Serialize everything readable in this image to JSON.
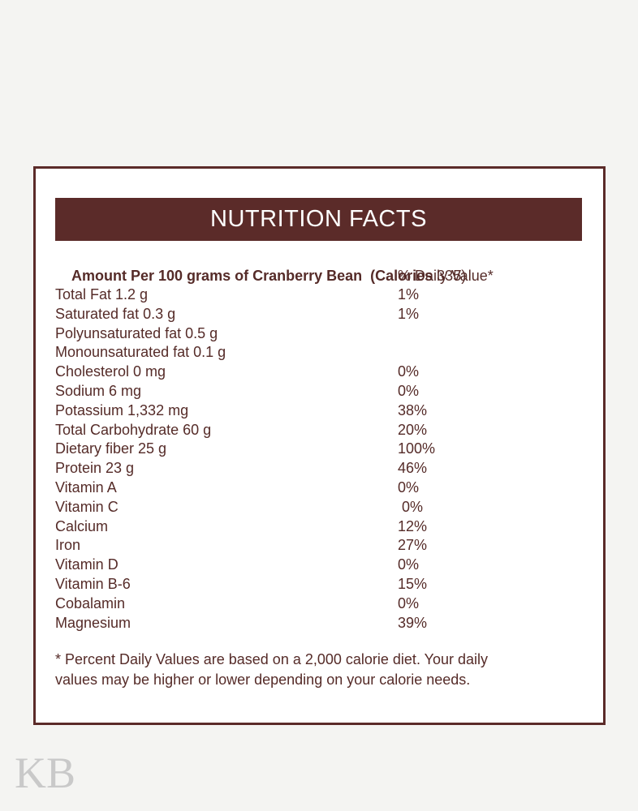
{
  "page": {
    "watermark": "KB",
    "colors": {
      "maroon": "#5b2b29",
      "text_maroon": "#552b28",
      "page_background": "#f4f4f2",
      "card_background": "#ffffff",
      "title_text": "#ffffff",
      "watermark_gray": "#c9c9c9"
    }
  },
  "label": {
    "title": "NUTRITION FACTS",
    "amount_line": {
      "amount_bold": "Amount Per 100 grams of Cranberry Bean  ",
      "calories_bold": "(Calories ",
      "calories_value": "335)"
    },
    "daily_value_header": "% Daily Value*",
    "rows": [
      {
        "label": "Total Fat 1.2 g",
        "value": "1%"
      },
      {
        "label": "Saturated fat 0.3 g",
        "value": "1%"
      },
      {
        "label": "Polyunsaturated fat 0.5 g",
        "value": ""
      },
      {
        "label": "Monounsaturated fat 0.1 g",
        "value": ""
      },
      {
        "label": "Cholesterol 0 mg",
        "value": "0%"
      },
      {
        "label": "Sodium 6 mg",
        "value": "0%"
      },
      {
        "label": "Potassium 1,332 mg",
        "value": "38%"
      },
      {
        "label": "Total Carbohydrate 60 g",
        "value": "20%"
      },
      {
        "label": "Dietary fiber 25 g",
        "value": "100%"
      },
      {
        "label": "Protein 23 g",
        "value": "46%"
      },
      {
        "label": "Vitamin A",
        "value": "0%"
      },
      {
        "label": "Vitamin C",
        "value": " 0%"
      },
      {
        "label": "Calcium",
        "value": "12%"
      },
      {
        "label": "Iron",
        "value": "27%"
      },
      {
        "label": "Vitamin D",
        "value": "0%"
      },
      {
        "label": "Vitamin B-6",
        "value": "15%"
      },
      {
        "label": "Cobalamin",
        "value": "0%"
      },
      {
        "label": "Magnesium",
        "value": "39%"
      }
    ],
    "footnote_line1": "* Percent Daily Values are based on a 2,000 calorie diet. Your daily",
    "footnote_line2": "values may be higher or lower depending on your calorie needs."
  }
}
